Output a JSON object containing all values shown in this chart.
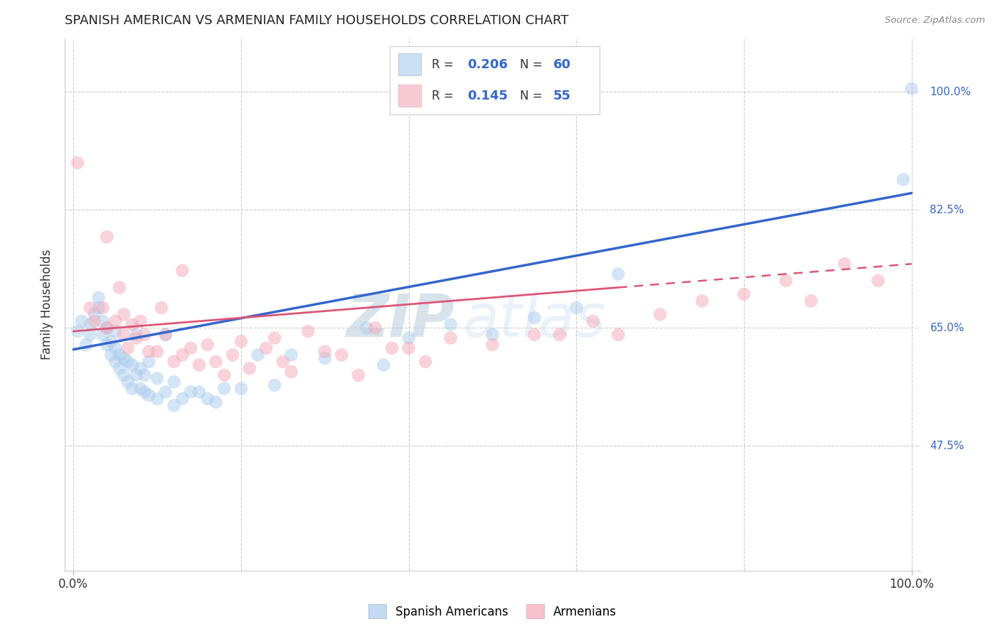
{
  "title": "SPANISH AMERICAN VS ARMENIAN FAMILY HOUSEHOLDS CORRELATION CHART",
  "source": "Source: ZipAtlas.com",
  "ylabel": "Family Households",
  "xlim": [
    -0.01,
    1.01
  ],
  "ylim": [
    0.29,
    1.08
  ],
  "yticks": [
    0.475,
    0.65,
    0.825,
    1.0
  ],
  "ytick_labels": [
    "47.5%",
    "65.0%",
    "82.5%",
    "100.0%"
  ],
  "blue_color": "#aaccee",
  "pink_color": "#f4a8b8",
  "blue_line_color": "#3366cc",
  "pink_line_color": "#dd5577",
  "blue_r": "0.206",
  "blue_n": "60",
  "pink_r": "0.145",
  "pink_n": "55",
  "blue_trendline": [
    0.0,
    1.0,
    0.618,
    0.85
  ],
  "pink_trendline_solid": [
    0.0,
    0.65,
    0.645,
    0.71
  ],
  "pink_trendline_dash": [
    0.65,
    1.0,
    0.71,
    0.745
  ],
  "blue_x": [
    0.005,
    0.01,
    0.015,
    0.02,
    0.02,
    0.025,
    0.03,
    0.03,
    0.035,
    0.035,
    0.04,
    0.04,
    0.045,
    0.045,
    0.05,
    0.05,
    0.05,
    0.055,
    0.055,
    0.06,
    0.06,
    0.065,
    0.065,
    0.07,
    0.07,
    0.075,
    0.075,
    0.08,
    0.08,
    0.085,
    0.085,
    0.09,
    0.09,
    0.1,
    0.1,
    0.11,
    0.11,
    0.12,
    0.12,
    0.13,
    0.14,
    0.15,
    0.16,
    0.17,
    0.18,
    0.2,
    0.22,
    0.24,
    0.26,
    0.3,
    0.35,
    0.37,
    0.4,
    0.45,
    0.5,
    0.55,
    0.6,
    0.65,
    0.99,
    1.0
  ],
  "blue_y": [
    0.645,
    0.66,
    0.625,
    0.655,
    0.64,
    0.67,
    0.68,
    0.695,
    0.66,
    0.64,
    0.625,
    0.65,
    0.61,
    0.63,
    0.6,
    0.62,
    0.645,
    0.59,
    0.61,
    0.58,
    0.605,
    0.57,
    0.6,
    0.56,
    0.595,
    0.58,
    0.64,
    0.56,
    0.59,
    0.555,
    0.58,
    0.55,
    0.6,
    0.545,
    0.575,
    0.555,
    0.64,
    0.535,
    0.57,
    0.545,
    0.555,
    0.555,
    0.545,
    0.54,
    0.56,
    0.56,
    0.61,
    0.565,
    0.61,
    0.605,
    0.65,
    0.595,
    0.635,
    0.655,
    0.64,
    0.665,
    0.68,
    0.73,
    0.87,
    1.005
  ],
  "pink_x": [
    0.005,
    0.02,
    0.025,
    0.035,
    0.04,
    0.04,
    0.05,
    0.055,
    0.06,
    0.06,
    0.065,
    0.07,
    0.075,
    0.08,
    0.085,
    0.09,
    0.1,
    0.105,
    0.11,
    0.12,
    0.13,
    0.13,
    0.14,
    0.15,
    0.16,
    0.17,
    0.18,
    0.19,
    0.2,
    0.21,
    0.23,
    0.24,
    0.25,
    0.26,
    0.28,
    0.3,
    0.32,
    0.34,
    0.36,
    0.38,
    0.4,
    0.42,
    0.45,
    0.5,
    0.55,
    0.58,
    0.62,
    0.65,
    0.7,
    0.75,
    0.8,
    0.85,
    0.88,
    0.92,
    0.96
  ],
  "pink_y": [
    0.895,
    0.68,
    0.66,
    0.68,
    0.65,
    0.785,
    0.66,
    0.71,
    0.64,
    0.67,
    0.62,
    0.655,
    0.635,
    0.66,
    0.64,
    0.615,
    0.615,
    0.68,
    0.64,
    0.6,
    0.61,
    0.735,
    0.62,
    0.595,
    0.625,
    0.6,
    0.58,
    0.61,
    0.63,
    0.59,
    0.62,
    0.635,
    0.6,
    0.585,
    0.645,
    0.615,
    0.61,
    0.58,
    0.65,
    0.62,
    0.62,
    0.6,
    0.635,
    0.625,
    0.64,
    0.64,
    0.66,
    0.64,
    0.67,
    0.69,
    0.7,
    0.72,
    0.69,
    0.745,
    0.72
  ]
}
